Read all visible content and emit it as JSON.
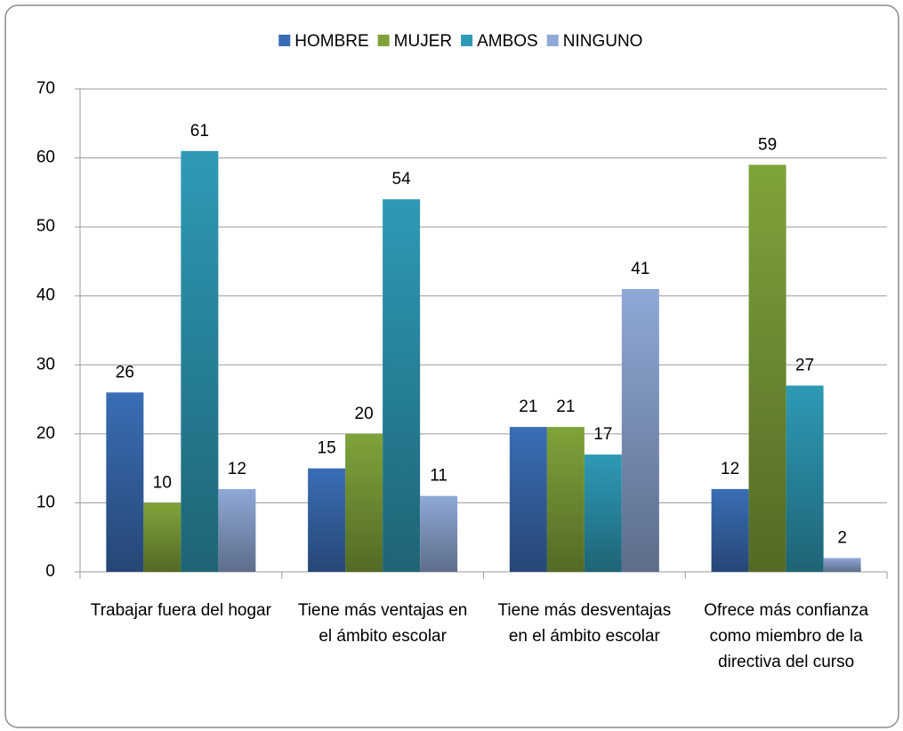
{
  "chart_data": {
    "type": "bar",
    "categories": [
      "Trabajar fuera del hogar",
      "Tiene más ventajas en el ámbito escolar",
      "Tiene más desventajas en el ámbito escolar",
      "Ofrece más confianza como miembro de la directiva  del curso"
    ],
    "series": [
      {
        "name": "HOMBRE",
        "color": "#3a6db5",
        "values": [
          26,
          15,
          21,
          12
        ]
      },
      {
        "name": "MUJER",
        "color": "#7fa33a",
        "values": [
          10,
          20,
          21,
          59
        ]
      },
      {
        "name": "AMBOS",
        "color": "#2e9ab5",
        "values": [
          61,
          54,
          17,
          27
        ]
      },
      {
        "name": "NINGUNO",
        "color": "#8fa8d6",
        "values": [
          12,
          11,
          41,
          2
        ]
      }
    ],
    "ylim": [
      0,
      70
    ],
    "yticks": [
      0,
      10,
      20,
      30,
      40,
      50,
      60,
      70
    ],
    "grid": true,
    "legend": "top"
  }
}
